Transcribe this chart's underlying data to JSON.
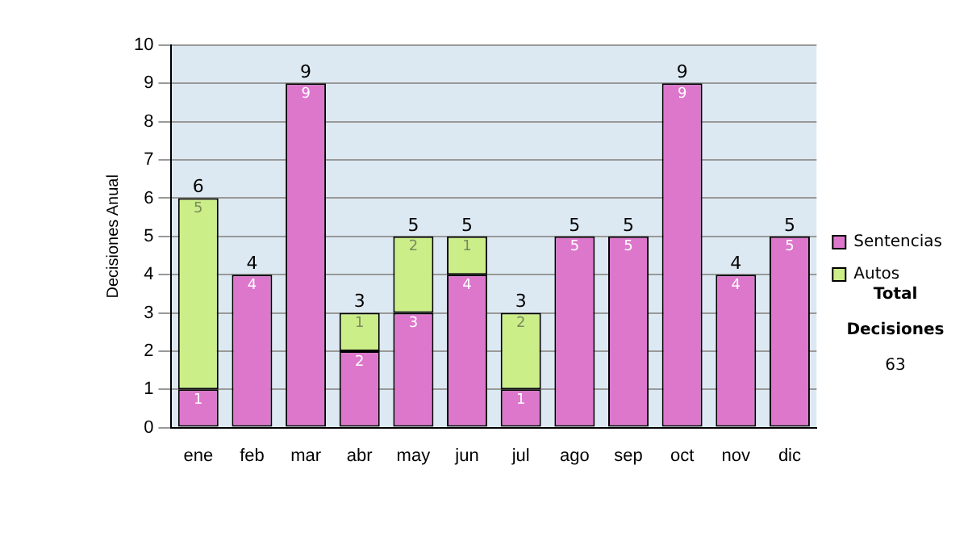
{
  "chart_data": {
    "type": "bar",
    "stacked": true,
    "ylabel": "Decisiones Anual",
    "categories": [
      "ene",
      "feb",
      "mar",
      "abr",
      "may",
      "jun",
      "jul",
      "ago",
      "sep",
      "oct",
      "nov",
      "dic"
    ],
    "series": [
      {
        "name": "Sentencias",
        "color": "#dd77cc",
        "values": [
          1,
          4,
          9,
          2,
          3,
          4,
          1,
          5,
          5,
          9,
          4,
          5
        ]
      },
      {
        "name": "Autos",
        "color": "#ccee88",
        "values": [
          5,
          null,
          null,
          1,
          2,
          1,
          2,
          null,
          null,
          null,
          null,
          null
        ]
      }
    ],
    "ylim": [
      0,
      10
    ],
    "yticks": [
      0,
      1,
      2,
      3,
      4,
      5,
      6,
      7,
      8,
      9,
      10
    ],
    "grid": "y",
    "legend": "right",
    "data_labels": true,
    "totals": [
      "6",
      "4",
      "9",
      "3",
      "5",
      "5",
      "3",
      "5",
      "5",
      "9",
      "4",
      "5"
    ],
    "annotations": [
      "Total Decisiones",
      "63"
    ]
  }
}
